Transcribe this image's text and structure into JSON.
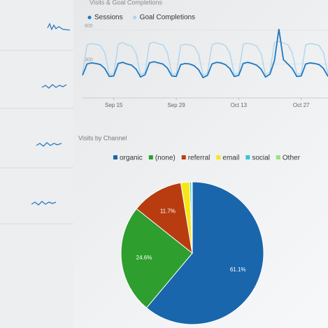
{
  "chart_data": [
    {
      "type": "line",
      "title": "Visits & Goal Completions",
      "categories": [
        null,
        null,
        null,
        null,
        null,
        null,
        null,
        "Sep 15",
        null,
        null,
        null,
        null,
        null,
        null,
        null,
        null,
        null,
        null,
        null,
        null,
        null,
        "Sep 29",
        null,
        null,
        null,
        null,
        null,
        null,
        null,
        null,
        null,
        null,
        null,
        null,
        null,
        "Oct 13",
        null,
        null,
        null,
        null,
        null,
        null,
        null,
        null,
        null,
        null,
        null,
        null,
        null,
        "Oct 27",
        null,
        null,
        null,
        null,
        null,
        null
      ],
      "series": [
        {
          "name": "Sessions",
          "color": "#1f78c1",
          "values": [
            200,
            300,
            310,
            305,
            295,
            260,
            190,
            195,
            305,
            315,
            300,
            290,
            255,
            185,
            205,
            310,
            320,
            310,
            300,
            265,
            195,
            190,
            295,
            305,
            300,
            285,
            250,
            180,
            200,
            300,
            315,
            310,
            295,
            260,
            190,
            200,
            305,
            315,
            305,
            290,
            255,
            185,
            210,
            330,
            610,
            340,
            300,
            260,
            190,
            195,
            300,
            310,
            305,
            295,
            260,
            190
          ]
        },
        {
          "name": "Goal Completions",
          "color": "#a9d4ee",
          "values": [
            220,
            470,
            480,
            475,
            465,
            400,
            210,
            215,
            475,
            490,
            470,
            460,
            395,
            205,
            225,
            480,
            495,
            480,
            470,
            405,
            215,
            210,
            465,
            475,
            470,
            455,
            390,
            200,
            220,
            470,
            485,
            480,
            465,
            400,
            210,
            220,
            475,
            485,
            475,
            460,
            395,
            205,
            230,
            490,
            500,
            485,
            470,
            400,
            210,
            215,
            470,
            480,
            475,
            465,
            400,
            210
          ]
        }
      ],
      "ylim": [
        0,
        650
      ],
      "yticks": [
        300,
        600
      ],
      "grid": true
    },
    {
      "type": "pie",
      "title": "Visits by Channel",
      "categories": [
        "organic",
        "(none)",
        "referral",
        "email",
        "social",
        "Other"
      ],
      "values": [
        61.1,
        24.6,
        11.7,
        2.0,
        0.4,
        0.2
      ],
      "value_labels": [
        "61.1%",
        "24.6%",
        "11.7%",
        null,
        null,
        null
      ],
      "colors": [
        "#1a66ad",
        "#2e9e2e",
        "#b83c10",
        "#f5e61a",
        "#33c6d6",
        "#9be07a"
      ]
    }
  ]
}
